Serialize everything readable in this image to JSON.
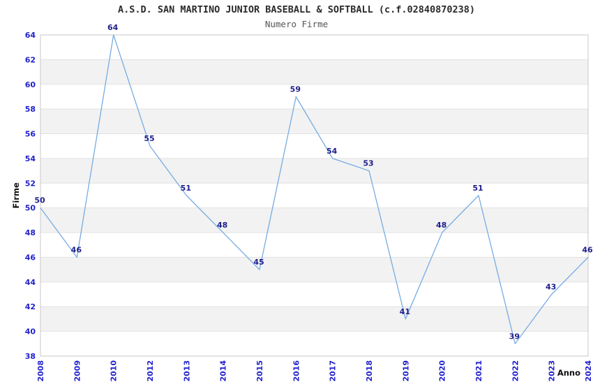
{
  "chart_data": {
    "type": "line",
    "title": "A.S.D. SAN MARTINO JUNIOR BASEBALL & SOFTBALL (c.f.02840870238)",
    "subtitle": "Numero Firme",
    "xlabel": "Anno",
    "ylabel": "Firme",
    "categories": [
      "2008",
      "2009",
      "2010",
      "2012",
      "2013",
      "2014",
      "2015",
      "2016",
      "2017",
      "2018",
      "2019",
      "2020",
      "2021",
      "2022",
      "2023",
      "2024"
    ],
    "values": [
      50,
      46,
      64,
      55,
      51,
      48,
      45,
      59,
      54,
      53,
      41,
      48,
      51,
      39,
      43,
      46
    ],
    "ylim": [
      38,
      64
    ],
    "y_tick_step": 2,
    "y_ticks": [
      38,
      40,
      42,
      44,
      46,
      48,
      50,
      52,
      54,
      56,
      58,
      60,
      62,
      64
    ],
    "grid": "horizontal",
    "row_banding": true,
    "legend": "none",
    "point_labels": true,
    "colors": {
      "line": "#76ace3",
      "tick_label": "#2222cc",
      "point_label": "#1f1f8c",
      "band_fill": "#f2f2f2",
      "grid_line": "#e2e2e2",
      "plot_border": "#c9c9c9",
      "title_text": "#2b2b2b",
      "background": "#ffffff"
    }
  }
}
